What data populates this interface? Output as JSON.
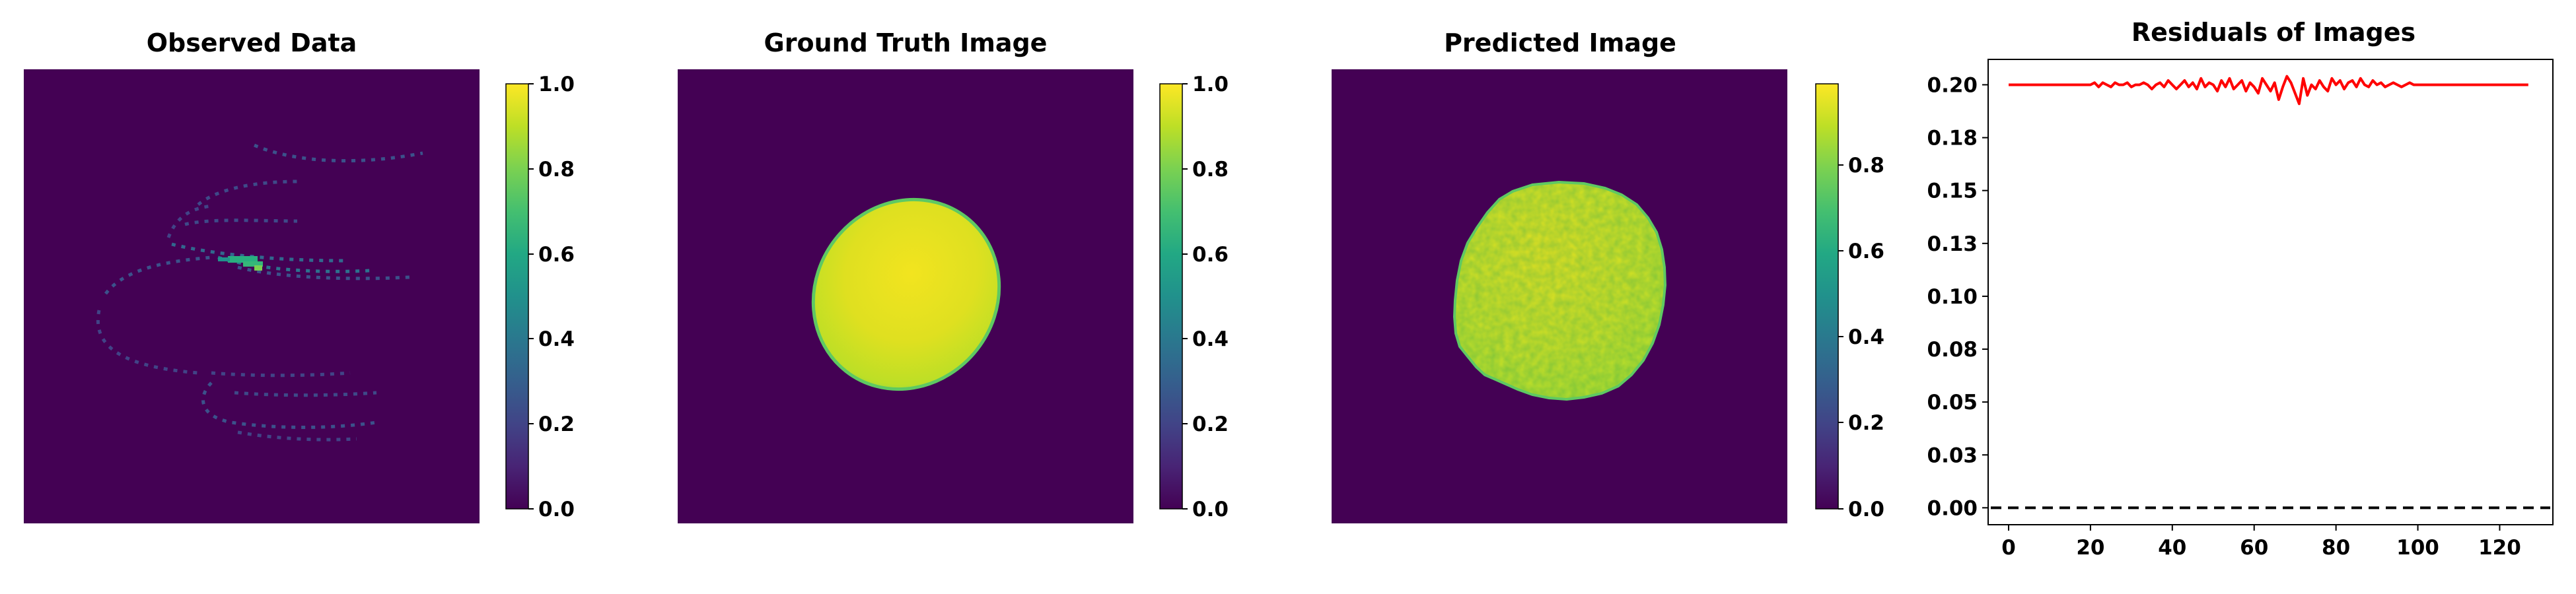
{
  "colors": {
    "background_panel": "#440154",
    "viridis_low": "#440154",
    "viridis_high": "#fde725",
    "residual_line": "#ff0000",
    "zero_line": "#000000"
  },
  "chart_data": [
    {
      "type": "heatmap",
      "title": "Observed Data",
      "content": "sparse spiral trajectory samples over dark background",
      "colorbar": {
        "min": 0.0,
        "max": 1.0,
        "ticks": [
          0.0,
          0.2,
          0.4,
          0.6,
          0.8,
          1.0
        ],
        "tick_labels": [
          "0.0",
          "0.2",
          "0.4",
          "0.6",
          "0.8",
          "1.0"
        ],
        "colormap": "viridis"
      },
      "axes": "off"
    },
    {
      "type": "heatmap",
      "title": "Ground Truth Image",
      "content": "tilted ellipse of high intensity on dark background",
      "colorbar": {
        "min": 0.0,
        "max": 1.0,
        "ticks": [
          0.0,
          0.2,
          0.4,
          0.6,
          0.8,
          1.0
        ],
        "tick_labels": [
          "0.0",
          "0.2",
          "0.4",
          "0.6",
          "0.8",
          "1.0"
        ],
        "colormap": "viridis"
      },
      "axes": "off"
    },
    {
      "type": "heatmap",
      "title": "Predicted Image",
      "content": "noisy reconstructed ellipse on dark background",
      "colorbar": {
        "min": 0.0,
        "max": 1.0,
        "ticks": [
          0.0,
          0.2,
          0.4,
          0.6,
          0.8
        ],
        "tick_labels": [
          "0.0",
          "0.2",
          "0.4",
          "0.6",
          "0.8"
        ],
        "colormap": "viridis"
      },
      "axes": "off"
    },
    {
      "type": "line",
      "title": "Residuals of Images",
      "xlim": [
        -5,
        133
      ],
      "ylim": [
        -0.008,
        0.212
      ],
      "xticks": [
        0,
        20,
        40,
        60,
        80,
        100,
        120
      ],
      "xtick_labels": [
        "0",
        "20",
        "40",
        "60",
        "80",
        "100",
        "120"
      ],
      "yticks": [
        0.0,
        0.025,
        0.05,
        0.075,
        0.1,
        0.125,
        0.15,
        0.175,
        0.2
      ],
      "ytick_labels": [
        "0.00",
        "0.03",
        "0.05",
        "0.08",
        "0.10",
        "0.13",
        "0.15",
        "0.18",
        "0.20"
      ],
      "reference_line": {
        "y": 0.0,
        "style": "dashed",
        "color": "#000000"
      },
      "series": [
        {
          "color": "#ff0000",
          "x": [
            0,
            2,
            4,
            6,
            8,
            10,
            12,
            14,
            16,
            18,
            20,
            21,
            22,
            23,
            24,
            25,
            26,
            27,
            28,
            29,
            30,
            31,
            32,
            33,
            34,
            35,
            36,
            37,
            38,
            39,
            40,
            41,
            42,
            43,
            44,
            45,
            46,
            47,
            48,
            49,
            50,
            51,
            52,
            53,
            54,
            55,
            56,
            57,
            58,
            59,
            60,
            61,
            62,
            63,
            64,
            65,
            66,
            67,
            68,
            69,
            70,
            71,
            72,
            73,
            74,
            75,
            76,
            77,
            78,
            79,
            80,
            81,
            82,
            83,
            84,
            85,
            86,
            87,
            88,
            89,
            90,
            91,
            92,
            93,
            94,
            95,
            96,
            97,
            98,
            99,
            100,
            102,
            104,
            106,
            108,
            110,
            112,
            114,
            116,
            118,
            120,
            122,
            124,
            126,
            127
          ],
          "values": [
            0.2,
            0.2,
            0.2,
            0.2,
            0.2,
            0.2,
            0.2,
            0.2,
            0.2,
            0.2,
            0.2,
            0.201,
            0.199,
            0.201,
            0.2,
            0.199,
            0.201,
            0.2,
            0.2,
            0.201,
            0.199,
            0.2,
            0.2,
            0.201,
            0.2,
            0.198,
            0.2,
            0.201,
            0.199,
            0.202,
            0.2,
            0.198,
            0.2,
            0.202,
            0.199,
            0.201,
            0.198,
            0.203,
            0.199,
            0.201,
            0.2,
            0.197,
            0.202,
            0.199,
            0.203,
            0.198,
            0.2,
            0.202,
            0.197,
            0.201,
            0.199,
            0.196,
            0.203,
            0.2,
            0.197,
            0.201,
            0.193,
            0.199,
            0.204,
            0.201,
            0.196,
            0.191,
            0.203,
            0.195,
            0.2,
            0.198,
            0.202,
            0.199,
            0.197,
            0.203,
            0.2,
            0.202,
            0.198,
            0.201,
            0.202,
            0.199,
            0.203,
            0.2,
            0.199,
            0.202,
            0.2,
            0.201,
            0.199,
            0.2,
            0.201,
            0.2,
            0.199,
            0.2,
            0.201,
            0.2,
            0.2,
            0.2,
            0.2,
            0.2,
            0.2,
            0.2,
            0.2,
            0.2,
            0.2,
            0.2,
            0.2,
            0.2,
            0.2,
            0.2,
            0.2
          ]
        }
      ]
    }
  ]
}
